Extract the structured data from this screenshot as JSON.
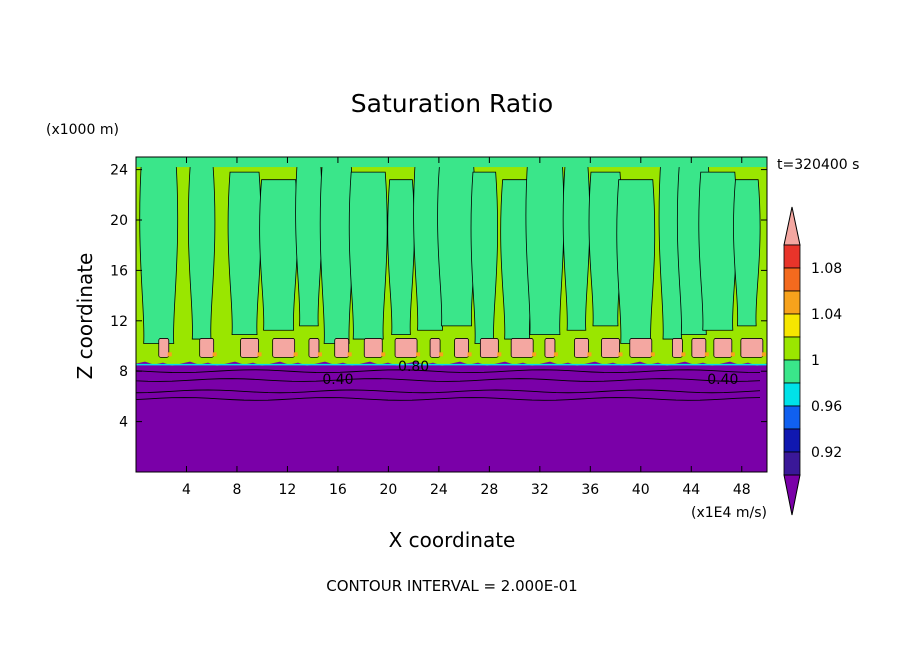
{
  "chart_data": {
    "type": "heatmap",
    "title": "Saturation Ratio",
    "xlabel": "X coordinate",
    "ylabel": "Z coordinate",
    "x_unit": "(x1E4 m/s)",
    "y_unit": "(x1000 m)",
    "time_label": "t=320400 s",
    "footer": "CONTOUR INTERVAL = 2.000E-01",
    "xlim": [
      0,
      50
    ],
    "ylim": [
      0,
      25
    ],
    "x_ticks": [
      4,
      8,
      12,
      16,
      20,
      24,
      28,
      32,
      36,
      40,
      44,
      48
    ],
    "y_ticks": [
      4,
      8,
      12,
      16,
      20,
      24
    ],
    "colorbar": {
      "labels": [
        {
          "text": "1.08",
          "value": 1.08
        },
        {
          "text": "1.04",
          "value": 1.04
        },
        {
          "text": "1",
          "value": 1.0
        },
        {
          "text": "0.96",
          "value": 0.96
        },
        {
          "text": "0.92",
          "value": 0.92
        }
      ],
      "bins": [
        {
          "from": 1.08,
          "to": 1.1,
          "color": "#e8342a"
        },
        {
          "from": 1.06,
          "to": 1.08,
          "color": "#f36a1e"
        },
        {
          "from": 1.04,
          "to": 1.06,
          "color": "#f7a21c"
        },
        {
          "from": 1.02,
          "to": 1.04,
          "color": "#f6e600"
        },
        {
          "from": 1.0,
          "to": 1.02,
          "color": "#9ae600"
        },
        {
          "from": 0.98,
          "to": 1.0,
          "color": "#3ae68a"
        },
        {
          "from": 0.96,
          "to": 0.98,
          "color": "#00e2e8"
        },
        {
          "from": 0.94,
          "to": 0.96,
          "color": "#1060f0"
        },
        {
          "from": 0.92,
          "to": 0.94,
          "color": "#1018b0"
        },
        {
          "from": 0.9,
          "to": 0.92,
          "color": "#3a1898"
        }
      ],
      "over_color": "#f4a7a1",
      "under_color": "#7a00a8"
    },
    "contour_labels": [
      {
        "text": "0.40",
        "x": 16,
        "y": 7.4
      },
      {
        "text": "0.80",
        "x": 22,
        "y": 8.4
      },
      {
        "text": "0.40",
        "x": 46.5,
        "y": 7.4
      }
    ],
    "regions": {
      "low_value_top_z": 8.6,
      "low_color": "#7a00a8",
      "band_low_color": "#9ae600",
      "band_high_color": "#3ae68a",
      "supersat_color": "#f4a7a1",
      "supersat_z_range": [
        9.1,
        10.6
      ],
      "plumes_x": [
        1.8,
        5.2,
        8.6,
        11.3,
        13.7,
        15.9,
        18.4,
        21.0,
        23.3,
        25.4,
        27.6,
        30.2,
        32.4,
        34.9,
        37.2,
        39.6,
        42.5,
        44.2,
        46.1,
        48.4
      ]
    }
  }
}
